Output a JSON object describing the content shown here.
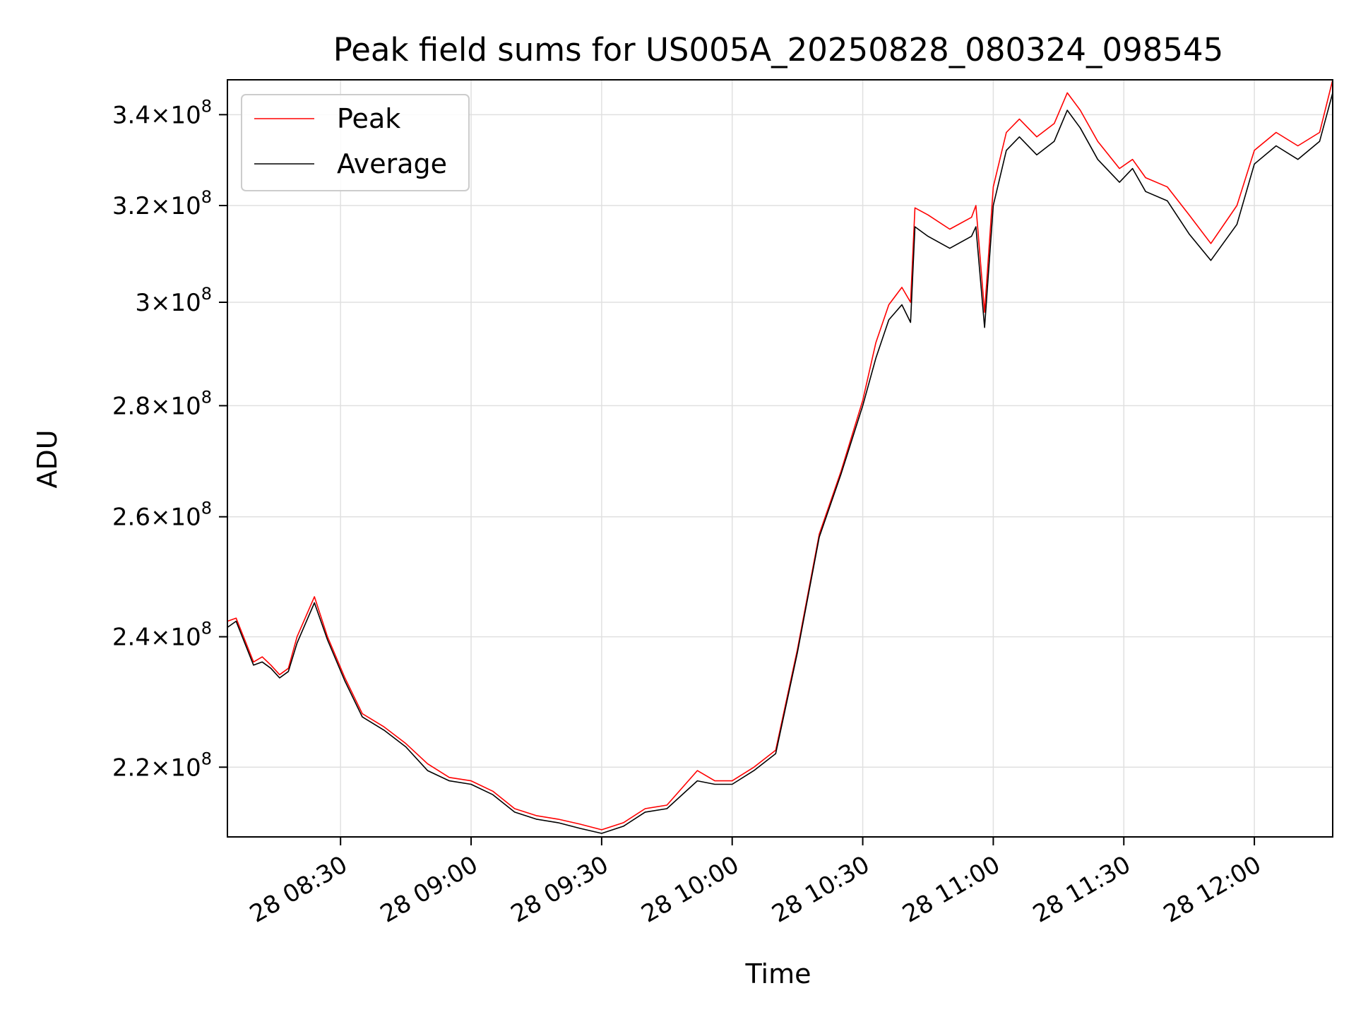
{
  "chart_data": {
    "type": "line",
    "title": "Peak field sums for US005A_20250828_080324_098545",
    "xlabel": "Time",
    "ylabel": "ADU",
    "grid": true,
    "legend": "top-left",
    "xlim": [
      "2025-08-28 08:04",
      "2025-08-28 12:18"
    ],
    "ylim": [
      210000000,
      348000000
    ],
    "yscale": "log",
    "x_ticks": [
      {
        "value": "2025-08-28 08:30",
        "label": "28 08:30"
      },
      {
        "value": "2025-08-28 09:00",
        "label": "28 09:00"
      },
      {
        "value": "2025-08-28 09:30",
        "label": "28 09:30"
      },
      {
        "value": "2025-08-28 10:00",
        "label": "28 10:00"
      },
      {
        "value": "2025-08-28 10:30",
        "label": "28 10:30"
      },
      {
        "value": "2025-08-28 11:00",
        "label": "28 11:00"
      },
      {
        "value": "2025-08-28 11:30",
        "label": "28 11:30"
      },
      {
        "value": "2025-08-28 12:00",
        "label": "28 12:00"
      }
    ],
    "y_ticks": [
      {
        "value": 220000000,
        "mantissa": "2.2",
        "exp": "8"
      },
      {
        "value": 240000000,
        "mantissa": "2.4",
        "exp": "8"
      },
      {
        "value": 260000000,
        "mantissa": "2.6",
        "exp": "8"
      },
      {
        "value": 280000000,
        "mantissa": "2.8",
        "exp": "8"
      },
      {
        "value": 300000000,
        "mantissa": "3",
        "exp": "8"
      },
      {
        "value": 320000000,
        "mantissa": "3.2",
        "exp": "8"
      },
      {
        "value": 340000000,
        "mantissa": "3.4",
        "exp": "8"
      }
    ],
    "series": [
      {
        "name": "Peak",
        "color": "#ff0000",
        "x": [
          "2025-08-28 08:04",
          "2025-08-28 08:06",
          "2025-08-28 08:10",
          "2025-08-28 08:12",
          "2025-08-28 08:14",
          "2025-08-28 08:16",
          "2025-08-28 08:18",
          "2025-08-28 08:20",
          "2025-08-28 08:24",
          "2025-08-28 08:27",
          "2025-08-28 08:31",
          "2025-08-28 08:35",
          "2025-08-28 08:40",
          "2025-08-28 08:45",
          "2025-08-28 08:50",
          "2025-08-28 08:55",
          "2025-08-28 09:00",
          "2025-08-28 09:05",
          "2025-08-28 09:10",
          "2025-08-28 09:15",
          "2025-08-28 09:20",
          "2025-08-28 09:25",
          "2025-08-28 09:30",
          "2025-08-28 09:35",
          "2025-08-28 09:40",
          "2025-08-28 09:45",
          "2025-08-28 09:52",
          "2025-08-28 09:56",
          "2025-08-28 10:00",
          "2025-08-28 10:05",
          "2025-08-28 10:10",
          "2025-08-28 10:15",
          "2025-08-28 10:20",
          "2025-08-28 10:25",
          "2025-08-28 10:30",
          "2025-08-28 10:33",
          "2025-08-28 10:36",
          "2025-08-28 10:39",
          "2025-08-28 10:41",
          "2025-08-28 10:42",
          "2025-08-28 10:45",
          "2025-08-28 10:50",
          "2025-08-28 10:55",
          "2025-08-28 10:56",
          "2025-08-28 10:58",
          "2025-08-28 11:00",
          "2025-08-28 11:03",
          "2025-08-28 11:06",
          "2025-08-28 11:10",
          "2025-08-28 11:14",
          "2025-08-28 11:17",
          "2025-08-28 11:20",
          "2025-08-28 11:24",
          "2025-08-28 11:29",
          "2025-08-28 11:32",
          "2025-08-28 11:35",
          "2025-08-28 11:40",
          "2025-08-28 11:45",
          "2025-08-28 11:50",
          "2025-08-28 11:56",
          "2025-08-28 12:00",
          "2025-08-28 12:05",
          "2025-08-28 12:10",
          "2025-08-28 12:15",
          "2025-08-28 12:18"
        ],
        "y": [
          242500000,
          243000000,
          236000000,
          236800000,
          235500000,
          234000000,
          235000000,
          240000000,
          246500000,
          240000000,
          233500000,
          228000000,
          226000000,
          223500000,
          220500000,
          218500000,
          218000000,
          216500000,
          214000000,
          213000000,
          212500000,
          211800000,
          211000000,
          212000000,
          214000000,
          214500000,
          219500000,
          218000000,
          218000000,
          220000000,
          222500000,
          238000000,
          257000000,
          268000000,
          281000000,
          292000000,
          299500000,
          303000000,
          300000000,
          319500000,
          318000000,
          315000000,
          317500000,
          320000000,
          298000000,
          324000000,
          336000000,
          339000000,
          335000000,
          338000000,
          345000000,
          341000000,
          334000000,
          328000000,
          330000000,
          326000000,
          324000000,
          318000000,
          312000000,
          320000000,
          332000000,
          336000000,
          333000000,
          336000000,
          348000000
        ]
      },
      {
        "name": "Average",
        "color": "#000000",
        "x": [
          "2025-08-28 08:04",
          "2025-08-28 08:06",
          "2025-08-28 08:10",
          "2025-08-28 08:12",
          "2025-08-28 08:14",
          "2025-08-28 08:16",
          "2025-08-28 08:18",
          "2025-08-28 08:20",
          "2025-08-28 08:24",
          "2025-08-28 08:27",
          "2025-08-28 08:31",
          "2025-08-28 08:35",
          "2025-08-28 08:40",
          "2025-08-28 08:45",
          "2025-08-28 08:50",
          "2025-08-28 08:55",
          "2025-08-28 09:00",
          "2025-08-28 09:05",
          "2025-08-28 09:10",
          "2025-08-28 09:15",
          "2025-08-28 09:20",
          "2025-08-28 09:25",
          "2025-08-28 09:30",
          "2025-08-28 09:35",
          "2025-08-28 09:40",
          "2025-08-28 09:45",
          "2025-08-28 09:52",
          "2025-08-28 09:56",
          "2025-08-28 10:00",
          "2025-08-28 10:05",
          "2025-08-28 10:10",
          "2025-08-28 10:15",
          "2025-08-28 10:20",
          "2025-08-28 10:25",
          "2025-08-28 10:30",
          "2025-08-28 10:33",
          "2025-08-28 10:36",
          "2025-08-28 10:39",
          "2025-08-28 10:41",
          "2025-08-28 10:42",
          "2025-08-28 10:45",
          "2025-08-28 10:50",
          "2025-08-28 10:55",
          "2025-08-28 10:56",
          "2025-08-28 10:58",
          "2025-08-28 11:00",
          "2025-08-28 11:03",
          "2025-08-28 11:06",
          "2025-08-28 11:10",
          "2025-08-28 11:14",
          "2025-08-28 11:17",
          "2025-08-28 11:20",
          "2025-08-28 11:24",
          "2025-08-28 11:29",
          "2025-08-28 11:32",
          "2025-08-28 11:35",
          "2025-08-28 11:40",
          "2025-08-28 11:45",
          "2025-08-28 11:50",
          "2025-08-28 11:56",
          "2025-08-28 12:00",
          "2025-08-28 12:05",
          "2025-08-28 12:10",
          "2025-08-28 12:15",
          "2025-08-28 12:18"
        ],
        "y": [
          241500000,
          242500000,
          235500000,
          236000000,
          235000000,
          233500000,
          234500000,
          239000000,
          245500000,
          239500000,
          233000000,
          227500000,
          225500000,
          223000000,
          219500000,
          218000000,
          217500000,
          216000000,
          213500000,
          212500000,
          212000000,
          211200000,
          210500000,
          211500000,
          213500000,
          214000000,
          218000000,
          217500000,
          217500000,
          219500000,
          222000000,
          237500000,
          256500000,
          267500000,
          280000000,
          289000000,
          296500000,
          299500000,
          296000000,
          315500000,
          313500000,
          311000000,
          313500000,
          315500000,
          295000000,
          320000000,
          332000000,
          335000000,
          331000000,
          334000000,
          341000000,
          337000000,
          330000000,
          325000000,
          328000000,
          323000000,
          321000000,
          314000000,
          308500000,
          316000000,
          329000000,
          333000000,
          330000000,
          334000000,
          345000000
        ]
      }
    ]
  }
}
